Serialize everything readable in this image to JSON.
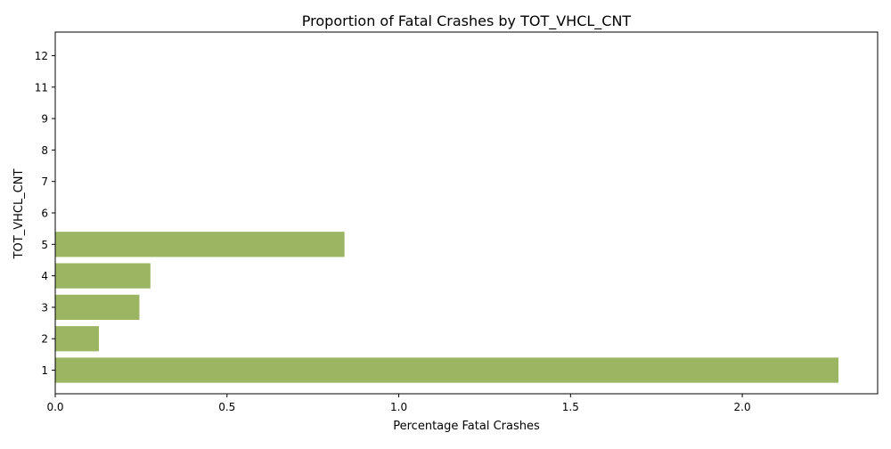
{
  "chart_data": {
    "type": "bar",
    "orientation": "horizontal",
    "title": "Proportion of Fatal Crashes by TOT_VHCL_CNT",
    "xlabel": "Percentage Fatal Crashes",
    "ylabel": "TOT_VHCL_CNT",
    "categories": [
      "1",
      "2",
      "3",
      "4",
      "5",
      "6",
      "7",
      "8",
      "9",
      "11",
      "12"
    ],
    "values": [
      2.28,
      0.127,
      0.245,
      0.277,
      0.842,
      0,
      0,
      0,
      0,
      0,
      0
    ],
    "xlim": [
      0,
      2.394
    ],
    "xticks": [
      0.0,
      0.5,
      1.0,
      1.5,
      2.0
    ],
    "xtick_labels": [
      "0.0",
      "0.5",
      "1.0",
      "1.5",
      "2.0"
    ],
    "bar_color": "#9bb562",
    "grid": false,
    "legend": "none"
  }
}
